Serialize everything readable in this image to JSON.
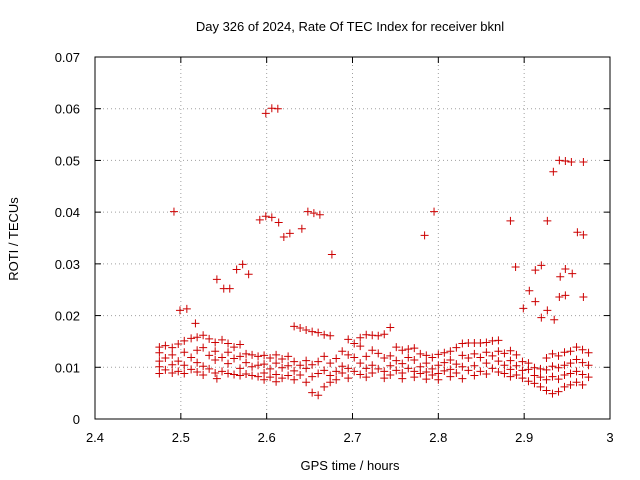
{
  "chart_data": {
    "type": "scatter",
    "title": "Day 326 of 2024, Rate Of TEC Index for receiver bknl",
    "xlabel": "GPS time / hours",
    "ylabel": "ROTI / TECUs",
    "xlim": [
      2.4,
      3.0
    ],
    "ylim": [
      0,
      0.07
    ],
    "x_ticks": [
      "2.4",
      "2.5",
      "2.6",
      "2.7",
      "2.8",
      "2.9",
      "3"
    ],
    "y_ticks": [
      "0",
      "0.01",
      "0.02",
      "0.03",
      "0.04",
      "0.05",
      "0.06",
      "0.07"
    ],
    "grid": true,
    "marker": "plus",
    "color": "#cc0000",
    "points": [
      [
        2.475,
        0.0139
      ],
      [
        2.475,
        0.0128
      ],
      [
        2.475,
        0.0112
      ],
      [
        2.475,
        0.0101
      ],
      [
        2.475,
        0.0088
      ],
      [
        2.482,
        0.0142
      ],
      [
        2.482,
        0.0118
      ],
      [
        2.482,
        0.0095
      ],
      [
        2.49,
        0.0138
      ],
      [
        2.49,
        0.0124
      ],
      [
        2.49,
        0.0105
      ],
      [
        2.49,
        0.0089
      ],
      [
        2.492,
        0.0401
      ],
      [
        2.497,
        0.0145
      ],
      [
        2.497,
        0.0112
      ],
      [
        2.497,
        0.0092
      ],
      [
        2.499,
        0.021
      ],
      [
        2.504,
        0.0151
      ],
      [
        2.504,
        0.0129
      ],
      [
        2.504,
        0.0104
      ],
      [
        2.504,
        0.0088
      ],
      [
        2.507,
        0.0213
      ],
      [
        2.512,
        0.0156
      ],
      [
        2.512,
        0.0119
      ],
      [
        2.512,
        0.0096
      ],
      [
        2.517,
        0.0185
      ],
      [
        2.519,
        0.0158
      ],
      [
        2.519,
        0.0133
      ],
      [
        2.519,
        0.0109
      ],
      [
        2.519,
        0.0091
      ],
      [
        2.526,
        0.0162
      ],
      [
        2.526,
        0.0138
      ],
      [
        2.526,
        0.0102
      ],
      [
        2.526,
        0.0085
      ],
      [
        2.533,
        0.0155
      ],
      [
        2.533,
        0.0123
      ],
      [
        2.533,
        0.0097
      ],
      [
        2.54,
        0.0148
      ],
      [
        2.54,
        0.0131
      ],
      [
        2.54,
        0.0114
      ],
      [
        2.54,
        0.0089
      ],
      [
        2.542,
        0.027
      ],
      [
        2.542,
        0.0078
      ],
      [
        2.548,
        0.0153
      ],
      [
        2.548,
        0.0119
      ],
      [
        2.548,
        0.0092
      ],
      [
        2.55,
        0.0252
      ],
      [
        2.555,
        0.0146
      ],
      [
        2.555,
        0.0129
      ],
      [
        2.555,
        0.0107
      ],
      [
        2.555,
        0.0088
      ],
      [
        2.557,
        0.0252
      ],
      [
        2.562,
        0.0139
      ],
      [
        2.562,
        0.0117
      ],
      [
        2.562,
        0.0086
      ],
      [
        2.565,
        0.0289
      ],
      [
        2.569,
        0.0144
      ],
      [
        2.569,
        0.0121
      ],
      [
        2.569,
        0.0098
      ],
      [
        2.569,
        0.0084
      ],
      [
        2.572,
        0.0299
      ],
      [
        2.576,
        0.0126
      ],
      [
        2.576,
        0.0109
      ],
      [
        2.576,
        0.0087
      ],
      [
        2.579,
        0.028
      ],
      [
        2.583,
        0.0124
      ],
      [
        2.583,
        0.0101
      ],
      [
        2.583,
        0.0084
      ],
      [
        2.59,
        0.0121
      ],
      [
        2.59,
        0.0104
      ],
      [
        2.59,
        0.0082
      ],
      [
        2.592,
        0.0385
      ],
      [
        2.597,
        0.0123
      ],
      [
        2.597,
        0.0106
      ],
      [
        2.597,
        0.0089
      ],
      [
        2.597,
        0.0076
      ],
      [
        2.599,
        0.0591
      ],
      [
        2.599,
        0.0392
      ],
      [
        2.604,
        0.0118
      ],
      [
        2.604,
        0.0097
      ],
      [
        2.604,
        0.0081
      ],
      [
        2.606,
        0.0601
      ],
      [
        2.606,
        0.039
      ],
      [
        2.611,
        0.0124
      ],
      [
        2.611,
        0.0108
      ],
      [
        2.611,
        0.0086
      ],
      [
        2.611,
        0.0072
      ],
      [
        2.613,
        0.06
      ],
      [
        2.614,
        0.038
      ],
      [
        2.618,
        0.0116
      ],
      [
        2.618,
        0.0099
      ],
      [
        2.618,
        0.0079
      ],
      [
        2.62,
        0.0352
      ],
      [
        2.625,
        0.0121
      ],
      [
        2.625,
        0.0103
      ],
      [
        2.625,
        0.0084
      ],
      [
        2.627,
        0.0359
      ],
      [
        2.632,
        0.0179
      ],
      [
        2.632,
        0.0111
      ],
      [
        2.632,
        0.0093
      ],
      [
        2.632,
        0.0076
      ],
      [
        2.639,
        0.0176
      ],
      [
        2.639,
        0.0104
      ],
      [
        2.639,
        0.0085
      ],
      [
        2.641,
        0.0368
      ],
      [
        2.646,
        0.0172
      ],
      [
        2.646,
        0.0113
      ],
      [
        2.646,
        0.0098
      ],
      [
        2.646,
        0.0071
      ],
      [
        2.648,
        0.0401
      ],
      [
        2.653,
        0.0169
      ],
      [
        2.653,
        0.0105
      ],
      [
        2.653,
        0.0082
      ],
      [
        2.653,
        0.0051
      ],
      [
        2.655,
        0.0398
      ],
      [
        2.66,
        0.0167
      ],
      [
        2.66,
        0.0111
      ],
      [
        2.66,
        0.0088
      ],
      [
        2.66,
        0.0046
      ],
      [
        2.662,
        0.0395
      ],
      [
        2.667,
        0.0163
      ],
      [
        2.667,
        0.0121
      ],
      [
        2.667,
        0.0094
      ],
      [
        2.667,
        0.0062
      ],
      [
        2.674,
        0.0161
      ],
      [
        2.674,
        0.0108
      ],
      [
        2.674,
        0.0084
      ],
      [
        2.674,
        0.0071
      ],
      [
        2.676,
        0.0318
      ],
      [
        2.681,
        0.0117
      ],
      [
        2.681,
        0.0092
      ],
      [
        2.681,
        0.0076
      ],
      [
        2.688,
        0.0131
      ],
      [
        2.688,
        0.0102
      ],
      [
        2.688,
        0.0089
      ],
      [
        2.695,
        0.0154
      ],
      [
        2.695,
        0.0124
      ],
      [
        2.695,
        0.0098
      ],
      [
        2.695,
        0.0079
      ],
      [
        2.702,
        0.0146
      ],
      [
        2.702,
        0.0119
      ],
      [
        2.702,
        0.0092
      ],
      [
        2.709,
        0.0157
      ],
      [
        2.709,
        0.0141
      ],
      [
        2.709,
        0.0108
      ],
      [
        2.709,
        0.0086
      ],
      [
        2.716,
        0.0163
      ],
      [
        2.716,
        0.0121
      ],
      [
        2.716,
        0.0098
      ],
      [
        2.716,
        0.0081
      ],
      [
        2.723,
        0.0162
      ],
      [
        2.723,
        0.0133
      ],
      [
        2.723,
        0.0104
      ],
      [
        2.723,
        0.0089
      ],
      [
        2.73,
        0.0161
      ],
      [
        2.73,
        0.0127
      ],
      [
        2.73,
        0.0097
      ],
      [
        2.737,
        0.0164
      ],
      [
        2.737,
        0.0118
      ],
      [
        2.737,
        0.0092
      ],
      [
        2.737,
        0.0079
      ],
      [
        2.744,
        0.0177
      ],
      [
        2.744,
        0.0122
      ],
      [
        2.744,
        0.0103
      ],
      [
        2.744,
        0.0085
      ],
      [
        2.751,
        0.0139
      ],
      [
        2.751,
        0.0113
      ],
      [
        2.751,
        0.0094
      ],
      [
        2.758,
        0.0133
      ],
      [
        2.758,
        0.0107
      ],
      [
        2.758,
        0.0089
      ],
      [
        2.758,
        0.0078
      ],
      [
        2.765,
        0.0135
      ],
      [
        2.765,
        0.0119
      ],
      [
        2.765,
        0.0098
      ],
      [
        2.772,
        0.0137
      ],
      [
        2.772,
        0.0114
      ],
      [
        2.772,
        0.0092
      ],
      [
        2.772,
        0.0081
      ],
      [
        2.779,
        0.0126
      ],
      [
        2.779,
        0.0101
      ],
      [
        2.779,
        0.0088
      ],
      [
        2.786,
        0.0123
      ],
      [
        2.786,
        0.0108
      ],
      [
        2.786,
        0.0091
      ],
      [
        2.786,
        0.0077
      ],
      [
        2.784,
        0.0355
      ],
      [
        2.793,
        0.0119
      ],
      [
        2.793,
        0.0097
      ],
      [
        2.793,
        0.0085
      ],
      [
        2.795,
        0.0401
      ],
      [
        2.8,
        0.0125
      ],
      [
        2.8,
        0.0104
      ],
      [
        2.8,
        0.0088
      ],
      [
        2.8,
        0.0076
      ],
      [
        2.807,
        0.0128
      ],
      [
        2.807,
        0.0109
      ],
      [
        2.807,
        0.0093
      ],
      [
        2.814,
        0.0131
      ],
      [
        2.814,
        0.0114
      ],
      [
        2.814,
        0.0096
      ],
      [
        2.814,
        0.0082
      ],
      [
        2.821,
        0.0138
      ],
      [
        2.821,
        0.0106
      ],
      [
        2.821,
        0.0089
      ],
      [
        2.828,
        0.0146
      ],
      [
        2.828,
        0.0123
      ],
      [
        2.828,
        0.0101
      ],
      [
        2.828,
        0.0078
      ],
      [
        2.835,
        0.0147
      ],
      [
        2.835,
        0.0118
      ],
      [
        2.835,
        0.0094
      ],
      [
        2.842,
        0.0147
      ],
      [
        2.842,
        0.0126
      ],
      [
        2.842,
        0.0103
      ],
      [
        2.842,
        0.0084
      ],
      [
        2.849,
        0.0147
      ],
      [
        2.849,
        0.0119
      ],
      [
        2.849,
        0.0092
      ],
      [
        2.856,
        0.0148
      ],
      [
        2.856,
        0.0129
      ],
      [
        2.856,
        0.0108
      ],
      [
        2.856,
        0.0087
      ],
      [
        2.863,
        0.0151
      ],
      [
        2.863,
        0.0122
      ],
      [
        2.863,
        0.0098
      ],
      [
        2.87,
        0.0152
      ],
      [
        2.87,
        0.0131
      ],
      [
        2.87,
        0.0112
      ],
      [
        2.87,
        0.0091
      ],
      [
        2.877,
        0.0127
      ],
      [
        2.877,
        0.0104
      ],
      [
        2.877,
        0.0088
      ],
      [
        2.884,
        0.0132
      ],
      [
        2.884,
        0.0113
      ],
      [
        2.884,
        0.0096
      ],
      [
        2.884,
        0.0082
      ],
      [
        2.884,
        0.0383
      ],
      [
        2.891,
        0.0124
      ],
      [
        2.891,
        0.0103
      ],
      [
        2.891,
        0.0085
      ],
      [
        2.89,
        0.0294
      ],
      [
        2.898,
        0.0111
      ],
      [
        2.898,
        0.0094
      ],
      [
        2.898,
        0.0079
      ],
      [
        2.899,
        0.0214
      ],
      [
        2.905,
        0.0108
      ],
      [
        2.905,
        0.0096
      ],
      [
        2.905,
        0.0073
      ],
      [
        2.906,
        0.0248
      ],
      [
        2.912,
        0.0099
      ],
      [
        2.912,
        0.0084
      ],
      [
        2.912,
        0.0069
      ],
      [
        2.913,
        0.0288
      ],
      [
        2.913,
        0.0227
      ],
      [
        2.919,
        0.0097
      ],
      [
        2.919,
        0.0081
      ],
      [
        2.919,
        0.0062
      ],
      [
        2.92,
        0.0297
      ],
      [
        2.92,
        0.0196
      ],
      [
        2.926,
        0.0118
      ],
      [
        2.926,
        0.0095
      ],
      [
        2.926,
        0.0076
      ],
      [
        2.926,
        0.0055
      ],
      [
        2.927,
        0.0383
      ],
      [
        2.927,
        0.021
      ],
      [
        2.933,
        0.0126
      ],
      [
        2.933,
        0.0102
      ],
      [
        2.933,
        0.0082
      ],
      [
        2.933,
        0.0049
      ],
      [
        2.934,
        0.0478
      ],
      [
        2.935,
        0.0192
      ],
      [
        2.94,
        0.0122
      ],
      [
        2.94,
        0.0099
      ],
      [
        2.94,
        0.0077
      ],
      [
        2.94,
        0.0053
      ],
      [
        2.941,
        0.05
      ],
      [
        2.942,
        0.0275
      ],
      [
        2.941,
        0.0236
      ],
      [
        2.947,
        0.0129
      ],
      [
        2.947,
        0.0104
      ],
      [
        2.947,
        0.0085
      ],
      [
        2.947,
        0.0062
      ],
      [
        2.948,
        0.0499
      ],
      [
        2.948,
        0.029
      ],
      [
        2.948,
        0.0239
      ],
      [
        2.954,
        0.0131
      ],
      [
        2.954,
        0.0108
      ],
      [
        2.954,
        0.0088
      ],
      [
        2.954,
        0.0066
      ],
      [
        2.955,
        0.0497
      ],
      [
        2.956,
        0.0281
      ],
      [
        2.961,
        0.0139
      ],
      [
        2.961,
        0.0115
      ],
      [
        2.961,
        0.0092
      ],
      [
        2.961,
        0.0071
      ],
      [
        2.962,
        0.0361
      ],
      [
        2.968,
        0.0134
      ],
      [
        2.968,
        0.0109
      ],
      [
        2.968,
        0.0086
      ],
      [
        2.968,
        0.0066
      ],
      [
        2.969,
        0.0497
      ],
      [
        2.969,
        0.0356
      ],
      [
        2.969,
        0.0236
      ],
      [
        2.975,
        0.0128
      ],
      [
        2.975,
        0.0104
      ],
      [
        2.975,
        0.0081
      ]
    ]
  }
}
